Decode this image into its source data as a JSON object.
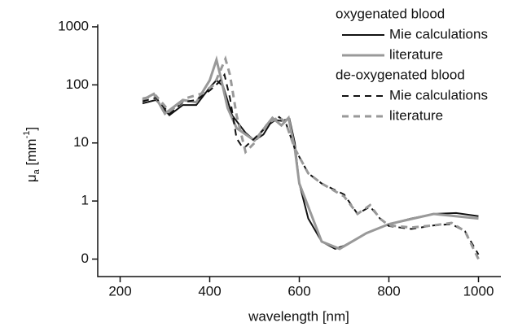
{
  "chart_data": {
    "type": "line",
    "xlabel": "wavelength [nm]",
    "ylabel": {
      "symbol": "μ",
      "subscript": "a",
      "unit": " [mm",
      "superscript": "-1",
      "close": "]"
    },
    "xlim": [
      150,
      1050
    ],
    "xticks": [
      200,
      400,
      600,
      800,
      1000
    ],
    "ylim": [
      0.05,
      1100
    ],
    "log_y": true,
    "yticks": [
      {
        "value": 0.1,
        "label": "0"
      },
      1,
      10,
      100,
      1000
    ],
    "legend_position": "upper right",
    "legend_groups": [
      "oxygenated blood",
      "de-oxygenated blood"
    ],
    "series": [
      {
        "name": "Mie calculations",
        "group": 0,
        "color": "#111111",
        "dashed": false,
        "x": [
          250,
          280,
          310,
          340,
          370,
          400,
          415,
          430,
          450,
          480,
          500,
          520,
          540,
          560,
          578,
          590,
          600,
          620,
          650,
          680,
          700,
          750,
          800,
          850,
          900,
          950,
          1000
        ],
        "values": [
          48,
          55,
          30,
          45,
          45,
          90,
          120,
          95,
          30,
          15,
          11,
          14,
          25,
          24,
          26,
          10,
          2,
          0.5,
          0.2,
          0.15,
          0.17,
          0.28,
          0.4,
          0.5,
          0.6,
          0.62,
          0.55
        ]
      },
      {
        "name": "literature",
        "group": 0,
        "color": "#999999",
        "dashed": false,
        "x": [
          250,
          275,
          300,
          340,
          370,
          400,
          415,
          425,
          440,
          460,
          500,
          540,
          560,
          576,
          590,
          600,
          650,
          690,
          750,
          800,
          900,
          1000
        ],
        "values": [
          55,
          70,
          32,
          55,
          50,
          120,
          270,
          130,
          40,
          18,
          11,
          27,
          20,
          27,
          8,
          2,
          0.2,
          0.15,
          0.28,
          0.4,
          0.6,
          0.5
        ]
      },
      {
        "name": "Mie calculations",
        "group": 1,
        "color": "#111111",
        "dashed": true,
        "x": [
          250,
          280,
          310,
          340,
          370,
          400,
          420,
          433,
          445,
          460,
          475,
          500,
          530,
          555,
          570,
          590,
          620,
          650,
          700,
          730,
          758,
          780,
          800,
          850,
          900,
          940,
          970,
          1000
        ],
        "values": [
          52,
          60,
          32,
          50,
          55,
          80,
          110,
          150,
          60,
          12,
          8,
          12,
          20,
          28,
          22,
          8,
          3,
          2,
          1.3,
          0.6,
          0.8,
          0.5,
          0.37,
          0.33,
          0.38,
          0.4,
          0.3,
          0.12
        ]
      },
      {
        "name": "literature",
        "group": 1,
        "color": "#999999",
        "dashed": true,
        "x": [
          250,
          280,
          310,
          350,
          380,
          410,
          435,
          445,
          460,
          480,
          500,
          530,
          555,
          570,
          590,
          620,
          650,
          700,
          730,
          758,
          780,
          800,
          850,
          900,
          940,
          970,
          1000
        ],
        "values": [
          58,
          65,
          35,
          60,
          70,
          100,
          280,
          150,
          30,
          7,
          10,
          22,
          28,
          22,
          8,
          3,
          2,
          1.2,
          0.6,
          0.85,
          0.5,
          0.38,
          0.35,
          0.38,
          0.42,
          0.3,
          0.1
        ]
      }
    ]
  }
}
